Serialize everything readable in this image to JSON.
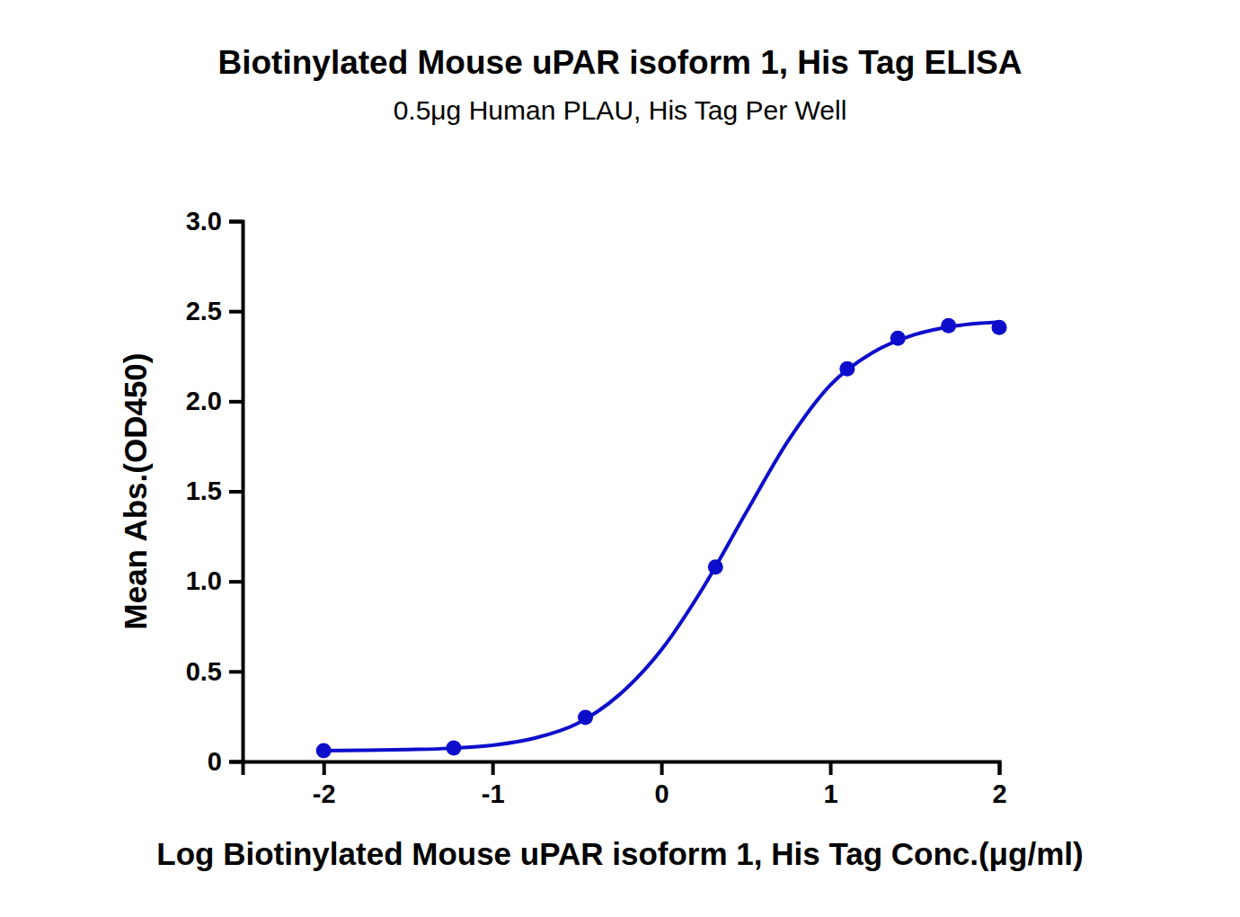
{
  "chart_data": {
    "type": "scatter",
    "title": "Biotinylated Mouse uPAR isoform 1, His Tag ELISA",
    "subtitle": "0.5μg Human PLAU, His Tag Per Well",
    "x_label": "Log Biotinylated Mouse uPAR isoform 1, His Tag Conc.(μg/ml)",
    "y_label": "Mean Abs.(OD450)",
    "xlim": [
      -2.48,
      2
    ],
    "xticks": [
      -2,
      -1,
      0,
      1,
      2
    ],
    "ylim": [
      0,
      3
    ],
    "yticks": [
      0,
      {
        "value": 0.5,
        "label": "0.5"
      },
      {
        "value": 1,
        "label": "1.0"
      },
      {
        "value": 1.5,
        "label": "1.5"
      },
      {
        "value": 2,
        "label": "2.0"
      },
      {
        "value": 2.5,
        "label": "2.5"
      },
      {
        "value": 3,
        "label": "3.0"
      }
    ],
    "grid": false,
    "series": [
      {
        "type": "scatter",
        "marker": "circle",
        "color": "#0d0dcc",
        "x": [
          -2,
          -1.23,
          -0.45,
          0.32,
          1.1,
          1.4,
          1.7,
          2
        ],
        "values": [
          0.06,
          0.075,
          0.245,
          1.08,
          2.18,
          2.35,
          2.42,
          2.41
        ]
      },
      {
        "type": "line",
        "line_style": "solid",
        "color": "#0d0dcc",
        "x": [
          -2,
          -1.75,
          -1.5,
          -1.25,
          -1,
          -0.75,
          -0.5,
          -0.25,
          0,
          0.25,
          0.5,
          0.75,
          1,
          1.25,
          1.5,
          1.75,
          2
        ],
        "values": [
          0.06,
          0.062,
          0.066,
          0.073,
          0.09,
          0.13,
          0.21,
          0.37,
          0.62,
          0.97,
          1.38,
          1.78,
          2.09,
          2.27,
          2.37,
          2.42,
          2.44
        ]
      }
    ]
  }
}
